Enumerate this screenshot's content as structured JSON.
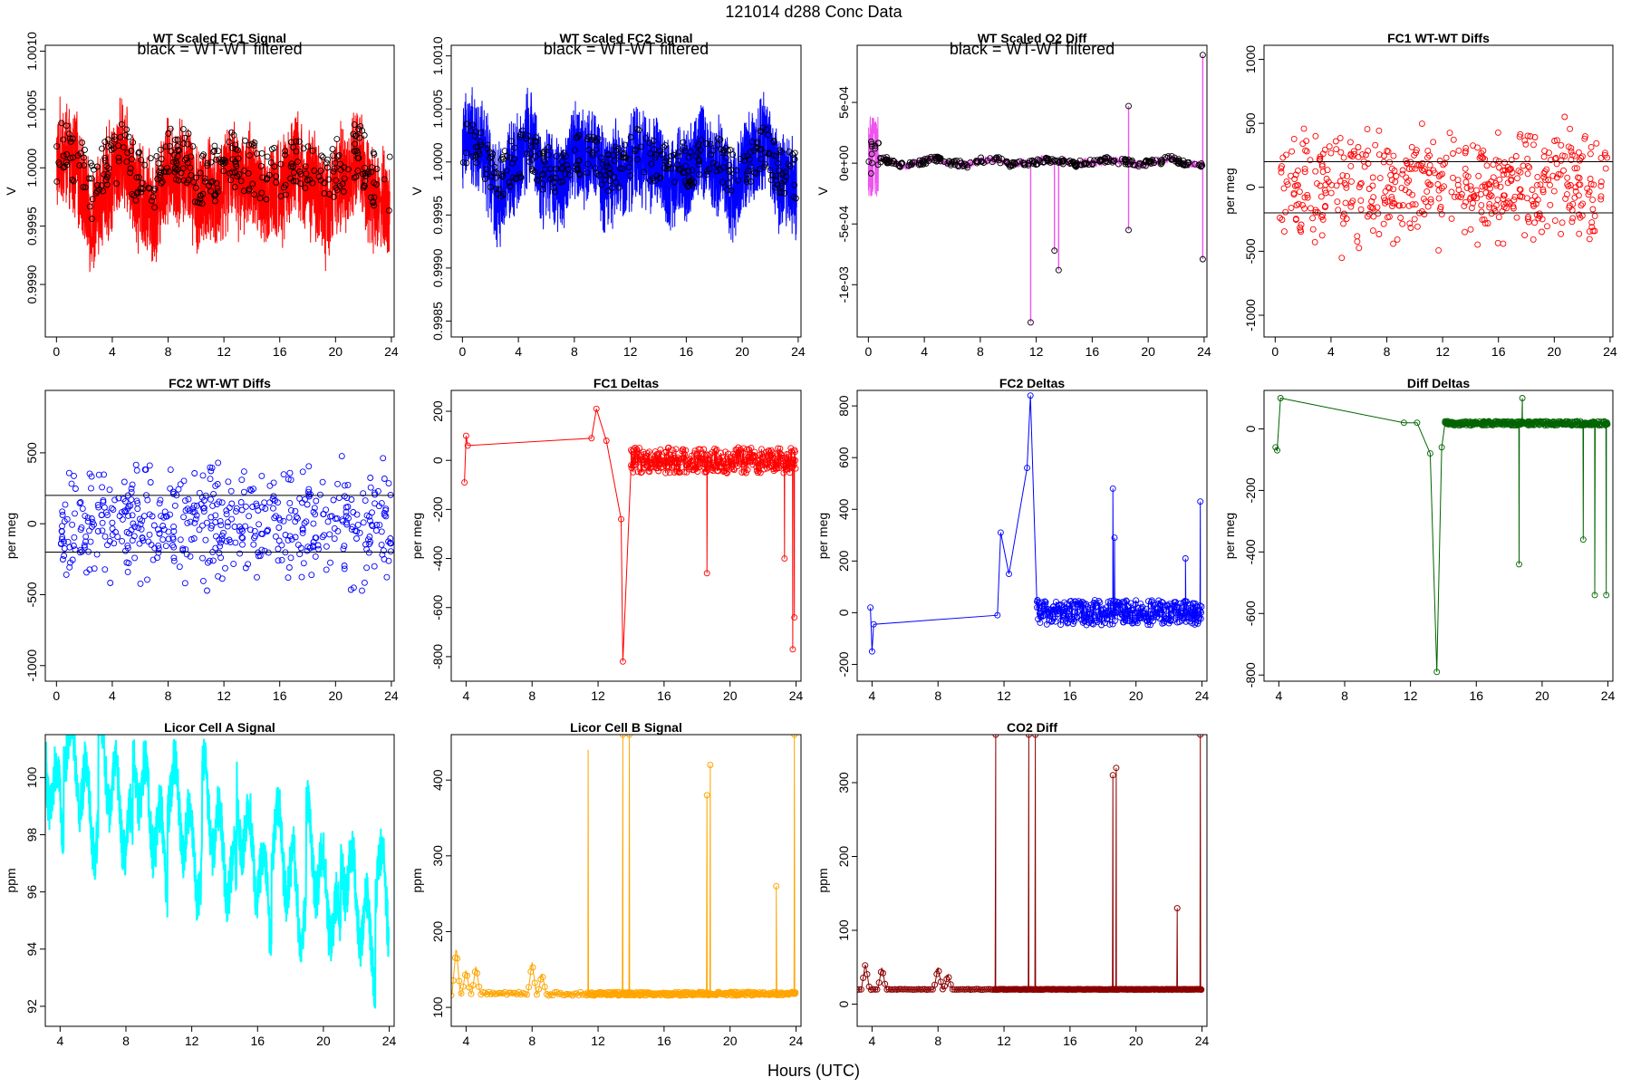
{
  "figure": {
    "main_title": "121014    d288    Conc Data",
    "x_label": "Hours (UTC)"
  },
  "chart_data": [
    {
      "id": "p1",
      "type": "line",
      "title": "WT Scaled FC1 Signal",
      "annotation": "black = WT-WT filtered",
      "ylabel": "V",
      "color": "#ff0000",
      "style": "dense",
      "xlim": [
        -0.8,
        24.2
      ],
      "ylim": [
        0.99855,
        1.00105
      ],
      "xticks": [
        0,
        4,
        8,
        12,
        16,
        20,
        24
      ],
      "yticks": [
        0.999,
        0.9995,
        1.0,
        1.0005,
        1.001
      ],
      "ytick_labels": [
        "0.9990",
        "0.9995",
        "1.0000",
        "1.0005",
        "1.0010"
      ],
      "baseline": 0.99985,
      "amplitude": 0.0009,
      "xmin": 0,
      "xmax": 23.9,
      "filtered_color": "#000000",
      "filtered_base": 1.0,
      "filtered_amp": 0.00045
    },
    {
      "id": "p2",
      "type": "line",
      "title": "WT Scaled FC2 Signal",
      "annotation": "black = WT-WT filtered",
      "ylabel": "V",
      "color": "#0000ff",
      "style": "dense",
      "xlim": [
        -0.8,
        24.2
      ],
      "ylim": [
        0.99835,
        1.0011
      ],
      "xticks": [
        0,
        4,
        8,
        12,
        16,
        20,
        24
      ],
      "yticks": [
        0.9985,
        0.999,
        0.9995,
        1.0,
        1.0005,
        1.001
      ],
      "ytick_labels": [
        "0.9985",
        "0.9990",
        "0.9995",
        "1.0000",
        "1.0005",
        "1.0010"
      ],
      "baseline": 0.99995,
      "amplitude": 0.0009,
      "xmin": 0,
      "xmax": 23.9,
      "filtered_color": "#000000",
      "filtered_base": 1.0,
      "filtered_amp": 0.0004
    },
    {
      "id": "p3",
      "type": "line",
      "title": "WT Scaled O2 Diff",
      "annotation": "black = WT-WT filtered",
      "ylabel": "V",
      "color": "#ee55ee",
      "style": "diff",
      "xlim": [
        -0.8,
        24.2
      ],
      "ylim": [
        -0.00143,
        0.00097
      ],
      "xticks": [
        0,
        4,
        8,
        12,
        16,
        20,
        24
      ],
      "yticks": [
        -0.001,
        -0.0005,
        0,
        0.0005
      ],
      "ytick_labels": [
        "-1e-03",
        "-5e-04",
        "0e+00",
        "5e-04"
      ],
      "baseline": 1e-05,
      "amplitude": 4e-05,
      "xmin": 0,
      "xmax": 23.9,
      "filtered_color": "#000000",
      "spikes": [
        [
          11.6,
          -0.00131
        ],
        [
          13.3,
          -0.00072
        ],
        [
          13.6,
          -0.00088
        ],
        [
          18.6,
          -0.00055
        ],
        [
          18.6,
          0.00047
        ],
        [
          23.9,
          0.00089
        ],
        [
          23.9,
          -0.00079
        ]
      ]
    },
    {
      "id": "p4",
      "type": "scatter",
      "title": "FC1 WT-WT Diffs",
      "ylabel": "per meg",
      "color": "#ff0000",
      "xlim": [
        -0.8,
        24.2
      ],
      "ylim": [
        -1170,
        1110
      ],
      "xticks": [
        0,
        4,
        8,
        12,
        16,
        20,
        24
      ],
      "yticks": [
        -1000,
        -500,
        0,
        500,
        1000
      ],
      "ytick_labels": [
        "-1000",
        "-500",
        "0",
        "500",
        "1000"
      ],
      "hlines": [
        200,
        -200
      ],
      "spread": 380,
      "xmin": 0.3,
      "xmax": 24
    },
    {
      "id": "p5",
      "type": "scatter",
      "title": "FC2 WT-WT Diffs",
      "ylabel": "per meg",
      "color": "#0000ff",
      "xlim": [
        -0.8,
        24.2
      ],
      "ylim": [
        -1110,
        940
      ],
      "xticks": [
        0,
        4,
        8,
        12,
        16,
        20,
        24
      ],
      "yticks": [
        -1000,
        -500,
        0,
        500
      ],
      "ytick_labels": [
        "-1000",
        "-500",
        "0",
        "500"
      ],
      "hlines": [
        200,
        -200
      ],
      "spread": 360,
      "xmin": 0.3,
      "xmax": 24
    },
    {
      "id": "p6",
      "type": "line",
      "title": "FC1 Deltas",
      "ylabel": "per meg",
      "color": "#ff0000",
      "style": "deltas",
      "xlim": [
        3.1,
        24.3
      ],
      "ylim": [
        -900,
        285
      ],
      "xticks": [
        4,
        8,
        12,
        16,
        20,
        24
      ],
      "yticks": [
        -800,
        -600,
        -400,
        -200,
        0,
        200
      ],
      "ytick_labels": [
        "-800",
        "-600",
        "-400",
        "-200",
        "0",
        "200"
      ],
      "anchors": [
        [
          3.9,
          -90
        ],
        [
          4.0,
          100
        ],
        [
          4.1,
          60
        ],
        [
          11.6,
          90
        ],
        [
          11.9,
          210
        ],
        [
          12.5,
          80
        ],
        [
          13.4,
          -240
        ],
        [
          13.5,
          -820
        ],
        [
          14.0,
          -20
        ]
      ],
      "dense_range": [
        14.0,
        24.0
      ],
      "dense_level": 0,
      "noise": 75,
      "spikes": [
        [
          18.6,
          -460
        ],
        [
          23.3,
          -400
        ],
        [
          23.8,
          -770
        ],
        [
          23.9,
          -640
        ]
      ]
    },
    {
      "id": "p7",
      "type": "line",
      "title": "FC2 Deltas",
      "ylabel": "per meg",
      "color": "#0000ff",
      "style": "deltas",
      "xlim": [
        3.1,
        24.3
      ],
      "ylim": [
        -265,
        860
      ],
      "xticks": [
        4,
        8,
        12,
        16,
        20,
        24
      ],
      "yticks": [
        -200,
        0,
        200,
        400,
        600,
        800
      ],
      "ytick_labels": [
        "-200",
        "0",
        "200",
        "400",
        "600",
        "800"
      ],
      "anchors": [
        [
          3.9,
          20
        ],
        [
          4.0,
          -150
        ],
        [
          4.1,
          -45
        ],
        [
          11.6,
          -10
        ],
        [
          11.8,
          310
        ],
        [
          12.3,
          150
        ],
        [
          13.4,
          560
        ],
        [
          13.6,
          840
        ],
        [
          14.0,
          20
        ]
      ],
      "dense_range": [
        14.0,
        24.0
      ],
      "dense_level": 0,
      "noise": 70,
      "spikes": [
        [
          18.6,
          480
        ],
        [
          18.7,
          290
        ],
        [
          23.0,
          210
        ],
        [
          23.9,
          430
        ]
      ]
    },
    {
      "id": "p8",
      "type": "line",
      "title": "Diff Deltas",
      "ylabel": "per meg",
      "color": "#006400",
      "style": "deltas",
      "xlim": [
        3.1,
        24.3
      ],
      "ylim": [
        -820,
        125
      ],
      "xticks": [
        4,
        8,
        12,
        16,
        20,
        24
      ],
      "yticks": [
        -800,
        -600,
        -400,
        -200,
        0
      ],
      "ytick_labels": [
        "-800",
        "-600",
        "-400",
        "-200",
        "0"
      ],
      "anchors": [
        [
          3.8,
          -60
        ],
        [
          3.9,
          -70
        ],
        [
          4.1,
          100
        ],
        [
          11.6,
          20
        ],
        [
          12.4,
          20
        ],
        [
          13.2,
          -80
        ],
        [
          13.6,
          -790
        ],
        [
          13.9,
          -60
        ],
        [
          14.1,
          20
        ]
      ],
      "dense_range": [
        14.1,
        24.0
      ],
      "dense_level": 18,
      "noise": 10,
      "spikes": [
        [
          18.6,
          -440
        ],
        [
          18.8,
          100
        ],
        [
          22.5,
          -360
        ],
        [
          23.2,
          -540
        ],
        [
          23.9,
          -540
        ]
      ]
    },
    {
      "id": "p9",
      "type": "line",
      "title": "Licor Cell A Signal",
      "ylabel": "ppm",
      "color": "#00ffff",
      "style": "licora",
      "xlim": [
        3.1,
        24.3
      ],
      "ylim": [
        91.3,
        101.5
      ],
      "xticks": [
        4,
        8,
        12,
        16,
        20,
        24
      ],
      "yticks": [
        92,
        94,
        96,
        98,
        100
      ],
      "ytick_labels": [
        "92",
        "94",
        "96",
        "98",
        "100"
      ],
      "baseline_start": 100.5,
      "baseline_end": 95.2
    },
    {
      "id": "p10",
      "type": "line",
      "title": "Licor Cell B Signal",
      "ylabel": "ppm",
      "color": "#ffa500",
      "style": "licorb",
      "xlim": [
        3.1,
        24.3
      ],
      "ylim": [
        75,
        460
      ],
      "xticks": [
        4,
        8,
        12,
        16,
        20,
        24
      ],
      "yticks": [
        100,
        200,
        300,
        400
      ],
      "ytick_labels": [
        "100",
        "200",
        "300",
        "400"
      ],
      "baseline": 118,
      "bumps": [
        [
          3.4,
          180
        ],
        [
          4.0,
          150
        ],
        [
          4.6,
          155
        ],
        [
          8.0,
          160
        ],
        [
          8.6,
          145
        ]
      ],
      "spikes": [
        [
          11.4,
          440
        ],
        [
          13.5,
          460
        ],
        [
          13.9,
          460
        ],
        [
          18.6,
          380
        ],
        [
          18.8,
          420
        ],
        [
          22.8,
          260
        ],
        [
          23.9,
          460
        ]
      ]
    },
    {
      "id": "p11",
      "type": "line",
      "title": "CO2 Diff",
      "ylabel": "ppm",
      "color": "#8b0000",
      "style": "licorb",
      "xlim": [
        3.1,
        24.3
      ],
      "ylim": [
        -30,
        365
      ],
      "xticks": [
        4,
        8,
        12,
        16,
        20,
        24
      ],
      "yticks": [
        0,
        100,
        200,
        300
      ],
      "ytick_labels": [
        "0",
        "100",
        "200",
        "300"
      ],
      "baseline": 20,
      "bumps": [
        [
          3.6,
          55
        ],
        [
          4.6,
          50
        ],
        [
          8.0,
          50
        ],
        [
          8.6,
          40
        ]
      ],
      "spikes": [
        [
          11.5,
          365
        ],
        [
          13.5,
          365
        ],
        [
          13.9,
          365
        ],
        [
          18.6,
          310
        ],
        [
          18.8,
          320
        ],
        [
          22.5,
          130
        ],
        [
          23.9,
          365
        ]
      ]
    }
  ]
}
